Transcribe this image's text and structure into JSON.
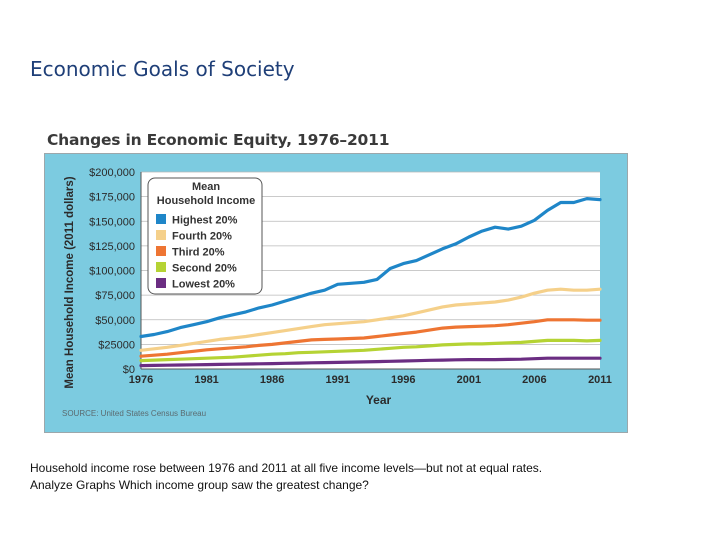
{
  "slide": {
    "title": "Economic Goals of Society",
    "caption_line1": "Household income rose between 1976 and 2011 at all five income levels—but not at equal rates.",
    "caption_line2": "Analyze Graphs Which income group saw the greatest change?"
  },
  "chart_data": {
    "type": "line",
    "title": "Changes in Economic Equity, 1976–2011",
    "xlabel": "Year",
    "ylabel": "Mean Household Income (2011 dollars)",
    "x": [
      1976,
      1977,
      1978,
      1979,
      1980,
      1981,
      1982,
      1983,
      1984,
      1985,
      1986,
      1987,
      1988,
      1989,
      1990,
      1991,
      1992,
      1993,
      1994,
      1995,
      1996,
      1997,
      1998,
      1999,
      2000,
      2001,
      2002,
      2003,
      2004,
      2005,
      2006,
      2007,
      2008,
      2009,
      2010,
      2011
    ],
    "xticks": [
      1976,
      1981,
      1986,
      1991,
      1996,
      2001,
      2006,
      2011
    ],
    "xtick_labels": [
      "1976",
      "1981",
      "1986",
      "1991",
      "1996",
      "2001",
      "2006",
      "2011"
    ],
    "ylim": [
      0,
      200000
    ],
    "yticks": [
      0,
      25000,
      50000,
      75000,
      100000,
      125000,
      150000,
      175000,
      200000
    ],
    "ytick_labels": [
      "$0",
      "$25000",
      "$50,000",
      "$75,000",
      "$100,000",
      "$125,000",
      "$150,000",
      "$175,000",
      "$200,000"
    ],
    "grid": "horizontal",
    "legend_title": "Mean Household Income",
    "legend_title_line1": "Mean",
    "legend_title_line2": "Household Income",
    "legend_position": "top-left",
    "source": "SOURCE: United States Census Bureau",
    "series": [
      {
        "name": "Highest 20%",
        "color": "#1f86c8",
        "values": [
          33000,
          35000,
          38000,
          42000,
          45000,
          48000,
          52000,
          55000,
          58000,
          62000,
          65000,
          69000,
          73000,
          77000,
          80000,
          86000,
          87000,
          88000,
          91000,
          102000,
          107000,
          110000,
          116000,
          122000,
          127000,
          134000,
          140000,
          144000,
          142000,
          145000,
          151000,
          161000,
          169000,
          169000,
          173000,
          172000
        ]
      },
      {
        "name": "Fourth 20%",
        "color": "#f5d08a",
        "values": [
          19000,
          20500,
          22000,
          24000,
          26000,
          28000,
          30000,
          31500,
          33000,
          35000,
          37000,
          39000,
          41000,
          43000,
          45000,
          46000,
          47000,
          48000,
          50000,
          52000,
          54000,
          57000,
          60000,
          63000,
          65000,
          66000,
          67000,
          68000,
          70000,
          73000,
          77000,
          80000,
          81000,
          80000,
          80000,
          81000
        ]
      },
      {
        "name": "Third 20%",
        "color": "#ee7533",
        "values": [
          13000,
          14000,
          15000,
          16500,
          18000,
          19500,
          20500,
          21500,
          22500,
          24000,
          25000,
          26500,
          28000,
          29500,
          30000,
          30500,
          31000,
          31500,
          33000,
          34500,
          36000,
          37500,
          39500,
          41500,
          42500,
          43000,
          43500,
          44000,
          45000,
          46500,
          48000,
          50000,
          50000,
          50000,
          49500,
          49500
        ]
      },
      {
        "name": "Second 20%",
        "color": "#b5d334",
        "values": [
          8500,
          9000,
          9500,
          10000,
          10500,
          11000,
          11500,
          12000,
          13000,
          14000,
          15000,
          15500,
          16500,
          17000,
          17500,
          18000,
          18500,
          19000,
          20000,
          21000,
          22000,
          22500,
          23500,
          24500,
          25000,
          25500,
          25500,
          26000,
          26500,
          27000,
          28000,
          29000,
          29000,
          29000,
          28500,
          29000
        ]
      },
      {
        "name": "Lowest 20%",
        "color": "#6b2d82",
        "values": [
          3500,
          3700,
          3900,
          4100,
          4300,
          4500,
          4700,
          4900,
          5100,
          5300,
          5500,
          5800,
          6000,
          6300,
          6500,
          6700,
          7000,
          7200,
          7500,
          7800,
          8100,
          8400,
          8800,
          9000,
          9300,
          9500,
          9500,
          9500,
          9700,
          10000,
          10500,
          11000,
          11000,
          11000,
          11000,
          11000
        ]
      }
    ]
  }
}
